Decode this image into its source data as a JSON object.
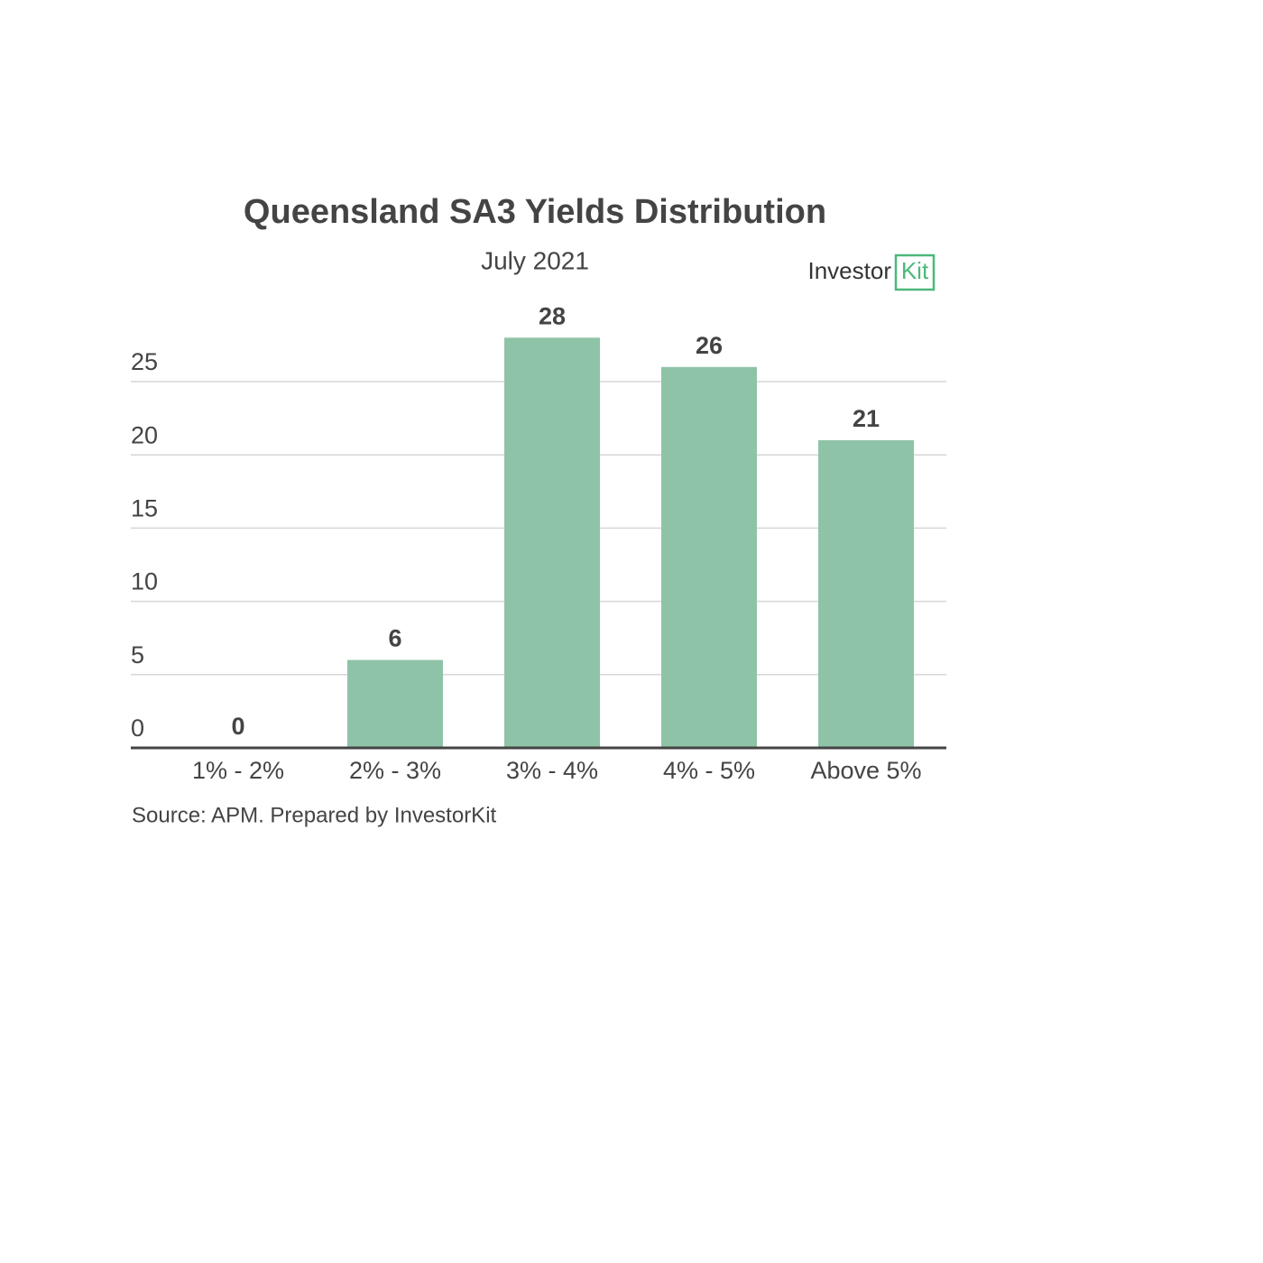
{
  "chart_data": {
    "type": "bar",
    "title": "Queensland SA3 Yields Distribution",
    "subtitle": "July 2021",
    "categories": [
      "1% - 2%",
      "2% - 3%",
      "3% - 4%",
      "4% - 5%",
      "Above 5%"
    ],
    "values": [
      0,
      6,
      28,
      26,
      21
    ],
    "color": "#8fc3a8",
    "ylim": [
      0,
      28
    ],
    "yticks": [
      0,
      5,
      10,
      15,
      20,
      25
    ],
    "grid": true,
    "source": "Source: APM. Prepared by InvestorKit",
    "logo": {
      "text": "Investor",
      "highlight": "Kit"
    }
  }
}
